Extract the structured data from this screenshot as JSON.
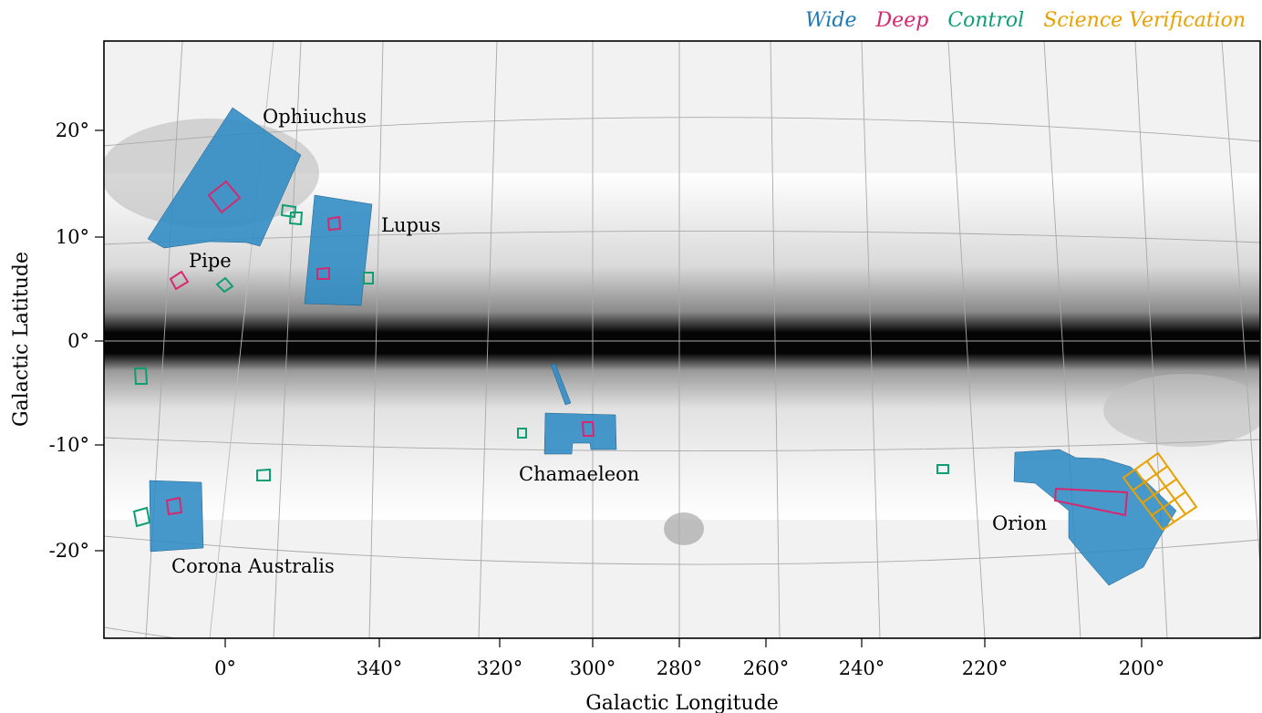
{
  "legend": [
    {
      "label": "Wide",
      "color": "#1f77b4"
    },
    {
      "label": "Deep",
      "color": "#d62870"
    },
    {
      "label": "Control",
      "color": "#0d9e74"
    },
    {
      "label": "Science Verification",
      "color": "#e8a100"
    }
  ],
  "axes": {
    "xlabel": "Galactic Longitude",
    "ylabel": "Galactic Latitude",
    "x_ticks": [
      "0°",
      "340°",
      "320°",
      "300°",
      "280°",
      "260°",
      "240°",
      "220°",
      "200°"
    ],
    "y_ticks": [
      "20°",
      "10°",
      "0°",
      "-10°",
      "-20°"
    ]
  },
  "regions": [
    "Ophiuchus",
    "Lupus",
    "Pipe",
    "Chamaeleon",
    "Corona Australis",
    "Orion"
  ],
  "colors": {
    "wide": "#2d8ac4",
    "deep": "#d62870",
    "control": "#0d9e74",
    "sv": "#e8a100"
  }
}
